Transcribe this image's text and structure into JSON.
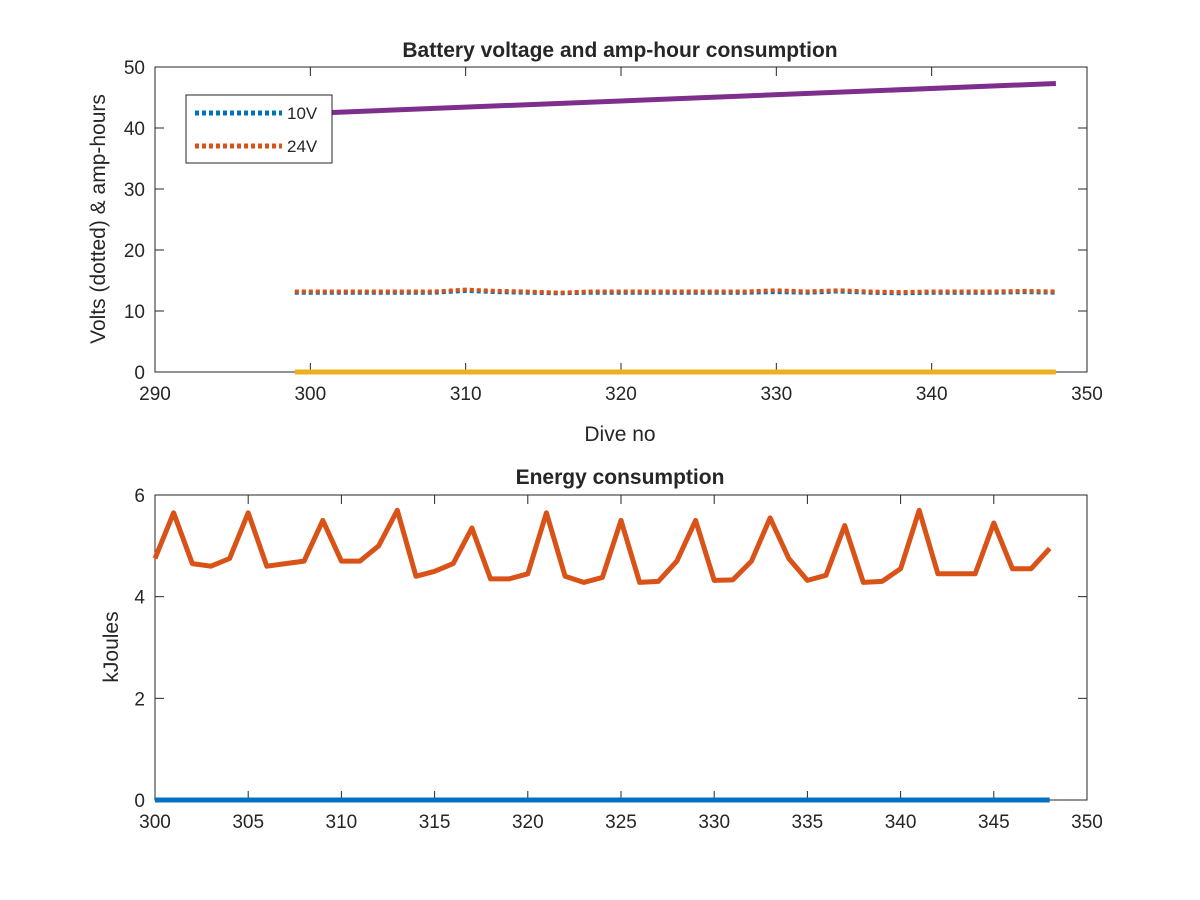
{
  "chart_data": [
    {
      "type": "line",
      "title": "Battery voltage and amp-hour consumption",
      "xlabel": "Dive no",
      "ylabel": "Volts (dotted) & amp-hours",
      "xlim": [
        290,
        350
      ],
      "ylim": [
        0,
        50
      ],
      "xticks": [
        290,
        300,
        310,
        320,
        330,
        340,
        350
      ],
      "yticks": [
        0,
        10,
        20,
        30,
        40,
        50
      ],
      "grid": false,
      "legend_position": "top-left",
      "series": [
        {
          "name": "10V",
          "style": "dotted",
          "color": "#0072BD",
          "x": [
            299,
            302,
            305,
            308,
            310,
            312,
            314,
            316,
            318,
            320,
            322,
            324,
            326,
            328,
            330,
            332,
            334,
            336,
            338,
            340,
            342,
            344,
            346,
            348
          ],
          "y": [
            13.0,
            13.0,
            13.0,
            13.0,
            13.3,
            13.1,
            13.0,
            12.9,
            13.0,
            13.0,
            13.0,
            13.0,
            13.0,
            13.0,
            13.1,
            13.0,
            13.2,
            13.0,
            12.9,
            13.0,
            13.0,
            13.0,
            13.1,
            13.0
          ]
        },
        {
          "name": "24V",
          "style": "dotted",
          "color": "#D95319",
          "x": [
            299,
            302,
            305,
            308,
            310,
            312,
            314,
            316,
            318,
            320,
            322,
            324,
            326,
            328,
            330,
            332,
            334,
            336,
            338,
            340,
            342,
            344,
            346,
            348
          ],
          "y": [
            13.2,
            13.2,
            13.2,
            13.2,
            13.5,
            13.3,
            13.2,
            13.0,
            13.2,
            13.2,
            13.2,
            13.2,
            13.2,
            13.2,
            13.4,
            13.2,
            13.4,
            13.2,
            13.1,
            13.2,
            13.2,
            13.2,
            13.3,
            13.2
          ]
        },
        {
          "style": "solid",
          "color": "#7E2F8E",
          "x": [
            299,
            348
          ],
          "y": [
            42.3,
            47.3
          ]
        },
        {
          "style": "solid",
          "color": "#EDB120",
          "x": [
            299,
            348
          ],
          "y": [
            0,
            0
          ]
        }
      ]
    },
    {
      "type": "line",
      "title": "Energy consumption",
      "xlabel": "",
      "ylabel": "kJoules",
      "xlim": [
        300,
        350
      ],
      "ylim": [
        0,
        6
      ],
      "xticks": [
        300,
        305,
        310,
        315,
        320,
        325,
        330,
        335,
        340,
        345,
        350
      ],
      "yticks": [
        0,
        2,
        4,
        6
      ],
      "grid": false,
      "series": [
        {
          "style": "solid",
          "color": "#D95319",
          "x": [
            300,
            301,
            302,
            303,
            304,
            305,
            306,
            307,
            308,
            309,
            310,
            311,
            312,
            313,
            314,
            315,
            316,
            317,
            318,
            319,
            320,
            321,
            322,
            323,
            324,
            325,
            326,
            327,
            328,
            329,
            330,
            331,
            332,
            333,
            334,
            335,
            336,
            337,
            338,
            339,
            340,
            341,
            342,
            343,
            344,
            345,
            346,
            347,
            348
          ],
          "y": [
            4.75,
            5.65,
            4.65,
            4.6,
            4.75,
            5.65,
            4.6,
            4.65,
            4.7,
            5.5,
            4.7,
            4.7,
            5.0,
            5.7,
            4.4,
            4.5,
            4.65,
            5.35,
            4.35,
            4.35,
            4.45,
            5.65,
            4.4,
            4.28,
            4.38,
            5.5,
            4.28,
            4.3,
            4.7,
            5.5,
            4.32,
            4.33,
            4.7,
            5.55,
            4.75,
            4.32,
            4.42,
            5.4,
            4.28,
            4.3,
            4.55,
            5.7,
            4.45,
            4.45,
            4.45,
            5.45,
            4.55,
            4.55,
            4.95
          ]
        },
        {
          "style": "solid",
          "color": "#0072BD",
          "x": [
            300,
            348
          ],
          "y": [
            0,
            0
          ]
        }
      ]
    }
  ]
}
